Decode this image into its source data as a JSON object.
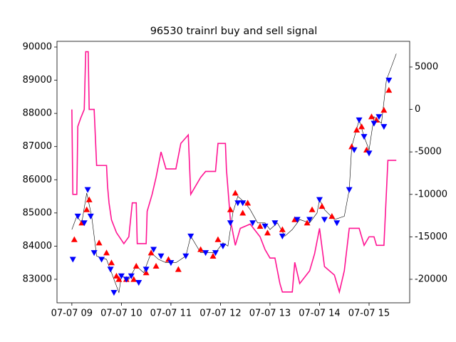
{
  "chart_data": {
    "type": "line",
    "title": "96530 trainrl buy and sell signal",
    "xlim": [
      8.7,
      15.82
    ],
    "ylim": [
      82291,
      90172
    ],
    "y2lim": [
      -22770,
      8020
    ],
    "xticks": [
      {
        "value": 9,
        "label": "07-07 09"
      },
      {
        "value": 10,
        "label": "07-07 10"
      },
      {
        "value": 11,
        "label": "07-07 11"
      },
      {
        "value": 12,
        "label": "07-07 12"
      },
      {
        "value": 13,
        "label": "07-07 13"
      },
      {
        "value": 14,
        "label": "07-07 14"
      },
      {
        "value": 15,
        "label": "07-07 15"
      }
    ],
    "yticks": [
      83000,
      84000,
      85000,
      86000,
      87000,
      88000,
      89000,
      90000
    ],
    "y2ticks": [
      -20000,
      -15000,
      -10000,
      -5000,
      0,
      5000
    ],
    "series": [
      {
        "color": "#000000",
        "marker": "none",
        "width": 0.6,
        "x": [
          9.0,
          9.1,
          9.2,
          9.3,
          9.4,
          9.5,
          9.7,
          9.85,
          9.95,
          10.0,
          10.15,
          10.3,
          10.45,
          10.6,
          10.75,
          10.9,
          11.1,
          11.3,
          11.4,
          11.6,
          11.9,
          12.05,
          12.15,
          12.25,
          12.35,
          12.5,
          12.6,
          12.75,
          12.9,
          13.0,
          13.15,
          13.3,
          13.45,
          13.6,
          13.8,
          13.95,
          14.0,
          14.1,
          14.3,
          14.5,
          14.6,
          14.65,
          14.8,
          14.9,
          15.0,
          15.1,
          15.25,
          15.35,
          15.55
        ],
        "values": [
          84500,
          84900,
          84700,
          85600,
          84900,
          83700,
          83600,
          83000,
          82600,
          83100,
          83000,
          83400,
          83200,
          83800,
          83600,
          83500,
          83500,
          83700,
          84300,
          83800,
          83800,
          84100,
          84000,
          85000,
          85500,
          85300,
          85100,
          84700,
          84700,
          84500,
          84700,
          84300,
          84500,
          84800,
          84700,
          85000,
          85400,
          85100,
          84800,
          84900,
          85700,
          87000,
          87800,
          87300,
          86900,
          87900,
          87700,
          89000,
          89800
        ]
      },
      {
        "color": "#ff1493",
        "marker": "none",
        "width": 1.6,
        "axis": "y2",
        "x": [
          9.0,
          9.02,
          9.1,
          9.12,
          9.18,
          9.25,
          9.28,
          9.33,
          9.35,
          9.45,
          9.5,
          9.7,
          9.72,
          9.75,
          9.8,
          9.9,
          10.05,
          10.15,
          10.22,
          10.3,
          10.32,
          10.5,
          10.52,
          10.62,
          10.7,
          10.8,
          10.9,
          11.1,
          11.2,
          11.35,
          11.4,
          11.6,
          11.7,
          11.9,
          11.95,
          12.1,
          12.12,
          12.2,
          12.3,
          12.4,
          12.6,
          12.8,
          12.9,
          13.0,
          13.1,
          13.2,
          13.25,
          13.45,
          13.5,
          13.6,
          13.8,
          13.9,
          14.0,
          14.1,
          14.3,
          14.4,
          14.5,
          14.6,
          14.8,
          14.9,
          15.0,
          15.1,
          15.15,
          15.3,
          15.38,
          15.55
        ],
        "values": [
          0,
          -10000,
          -10000,
          -2000,
          -1000,
          0,
          6800,
          6800,
          0,
          0,
          -6600,
          -6600,
          -9000,
          -11000,
          -13000,
          -14500,
          -15800,
          -15000,
          -11000,
          -11000,
          -15800,
          -15800,
          -12000,
          -10000,
          -8000,
          -5000,
          -7000,
          -7000,
          -4000,
          -3000,
          -10000,
          -8000,
          -7300,
          -7300,
          -4000,
          -4000,
          -7000,
          -13000,
          -16000,
          -14000,
          -13500,
          -15000,
          -16500,
          -17500,
          -17500,
          -20500,
          -21500,
          -21500,
          -18000,
          -20500,
          -19000,
          -17000,
          -14000,
          -18500,
          -19500,
          -21500,
          -19000,
          -14000,
          -14000,
          -16000,
          -15000,
          -15000,
          -16000,
          -16000,
          -6000,
          -6000
        ]
      },
      {
        "color": "#ff0000",
        "marker": "triangle-up",
        "x": [
          9.05,
          9.2,
          9.3,
          9.35,
          9.55,
          9.7,
          9.8,
          9.9,
          9.95,
          10.1,
          10.25,
          10.3,
          10.5,
          10.6,
          10.7,
          10.95,
          11.15,
          11.6,
          11.85,
          11.95,
          12.2,
          12.3,
          12.45,
          12.55,
          12.8,
          12.95,
          13.25,
          13.5,
          13.75,
          13.85,
          14.05,
          14.25,
          14.65,
          14.75,
          14.85,
          14.95,
          15.05,
          15.15,
          15.3,
          15.4
        ],
        "values": [
          84200,
          84700,
          85100,
          85400,
          84100,
          83800,
          83500,
          83100,
          83000,
          83000,
          83000,
          83400,
          83200,
          83800,
          83400,
          83600,
          83300,
          83900,
          83700,
          84200,
          85100,
          85600,
          85000,
          85300,
          84600,
          84400,
          84500,
          84800,
          84700,
          85100,
          85200,
          84900,
          87000,
          87500,
          87600,
          86900,
          87900,
          87800,
          88100,
          88700
        ]
      },
      {
        "color": "#0000ff",
        "marker": "triangle-down",
        "x": [
          9.02,
          9.12,
          9.25,
          9.32,
          9.38,
          9.45,
          9.6,
          9.78,
          9.85,
          10.0,
          10.1,
          10.2,
          10.35,
          10.5,
          10.65,
          10.8,
          11.0,
          11.3,
          11.4,
          11.7,
          11.9,
          12.05,
          12.2,
          12.35,
          12.45,
          12.65,
          12.9,
          13.1,
          13.25,
          13.55,
          13.8,
          14.0,
          14.1,
          14.35,
          14.6,
          14.7,
          14.8,
          14.9,
          15.0,
          15.1,
          15.2,
          15.3,
          15.4
        ],
        "values": [
          83600,
          84900,
          84700,
          85700,
          84900,
          83800,
          83600,
          83300,
          82600,
          83100,
          83000,
          83100,
          82900,
          83300,
          83900,
          83700,
          83500,
          83700,
          84300,
          83800,
          83800,
          84000,
          84700,
          85300,
          85300,
          84700,
          84600,
          84700,
          84300,
          84800,
          84800,
          85400,
          84800,
          84700,
          85700,
          86900,
          87800,
          87300,
          86800,
          87700,
          87900,
          87600,
          89000
        ]
      }
    ]
  }
}
